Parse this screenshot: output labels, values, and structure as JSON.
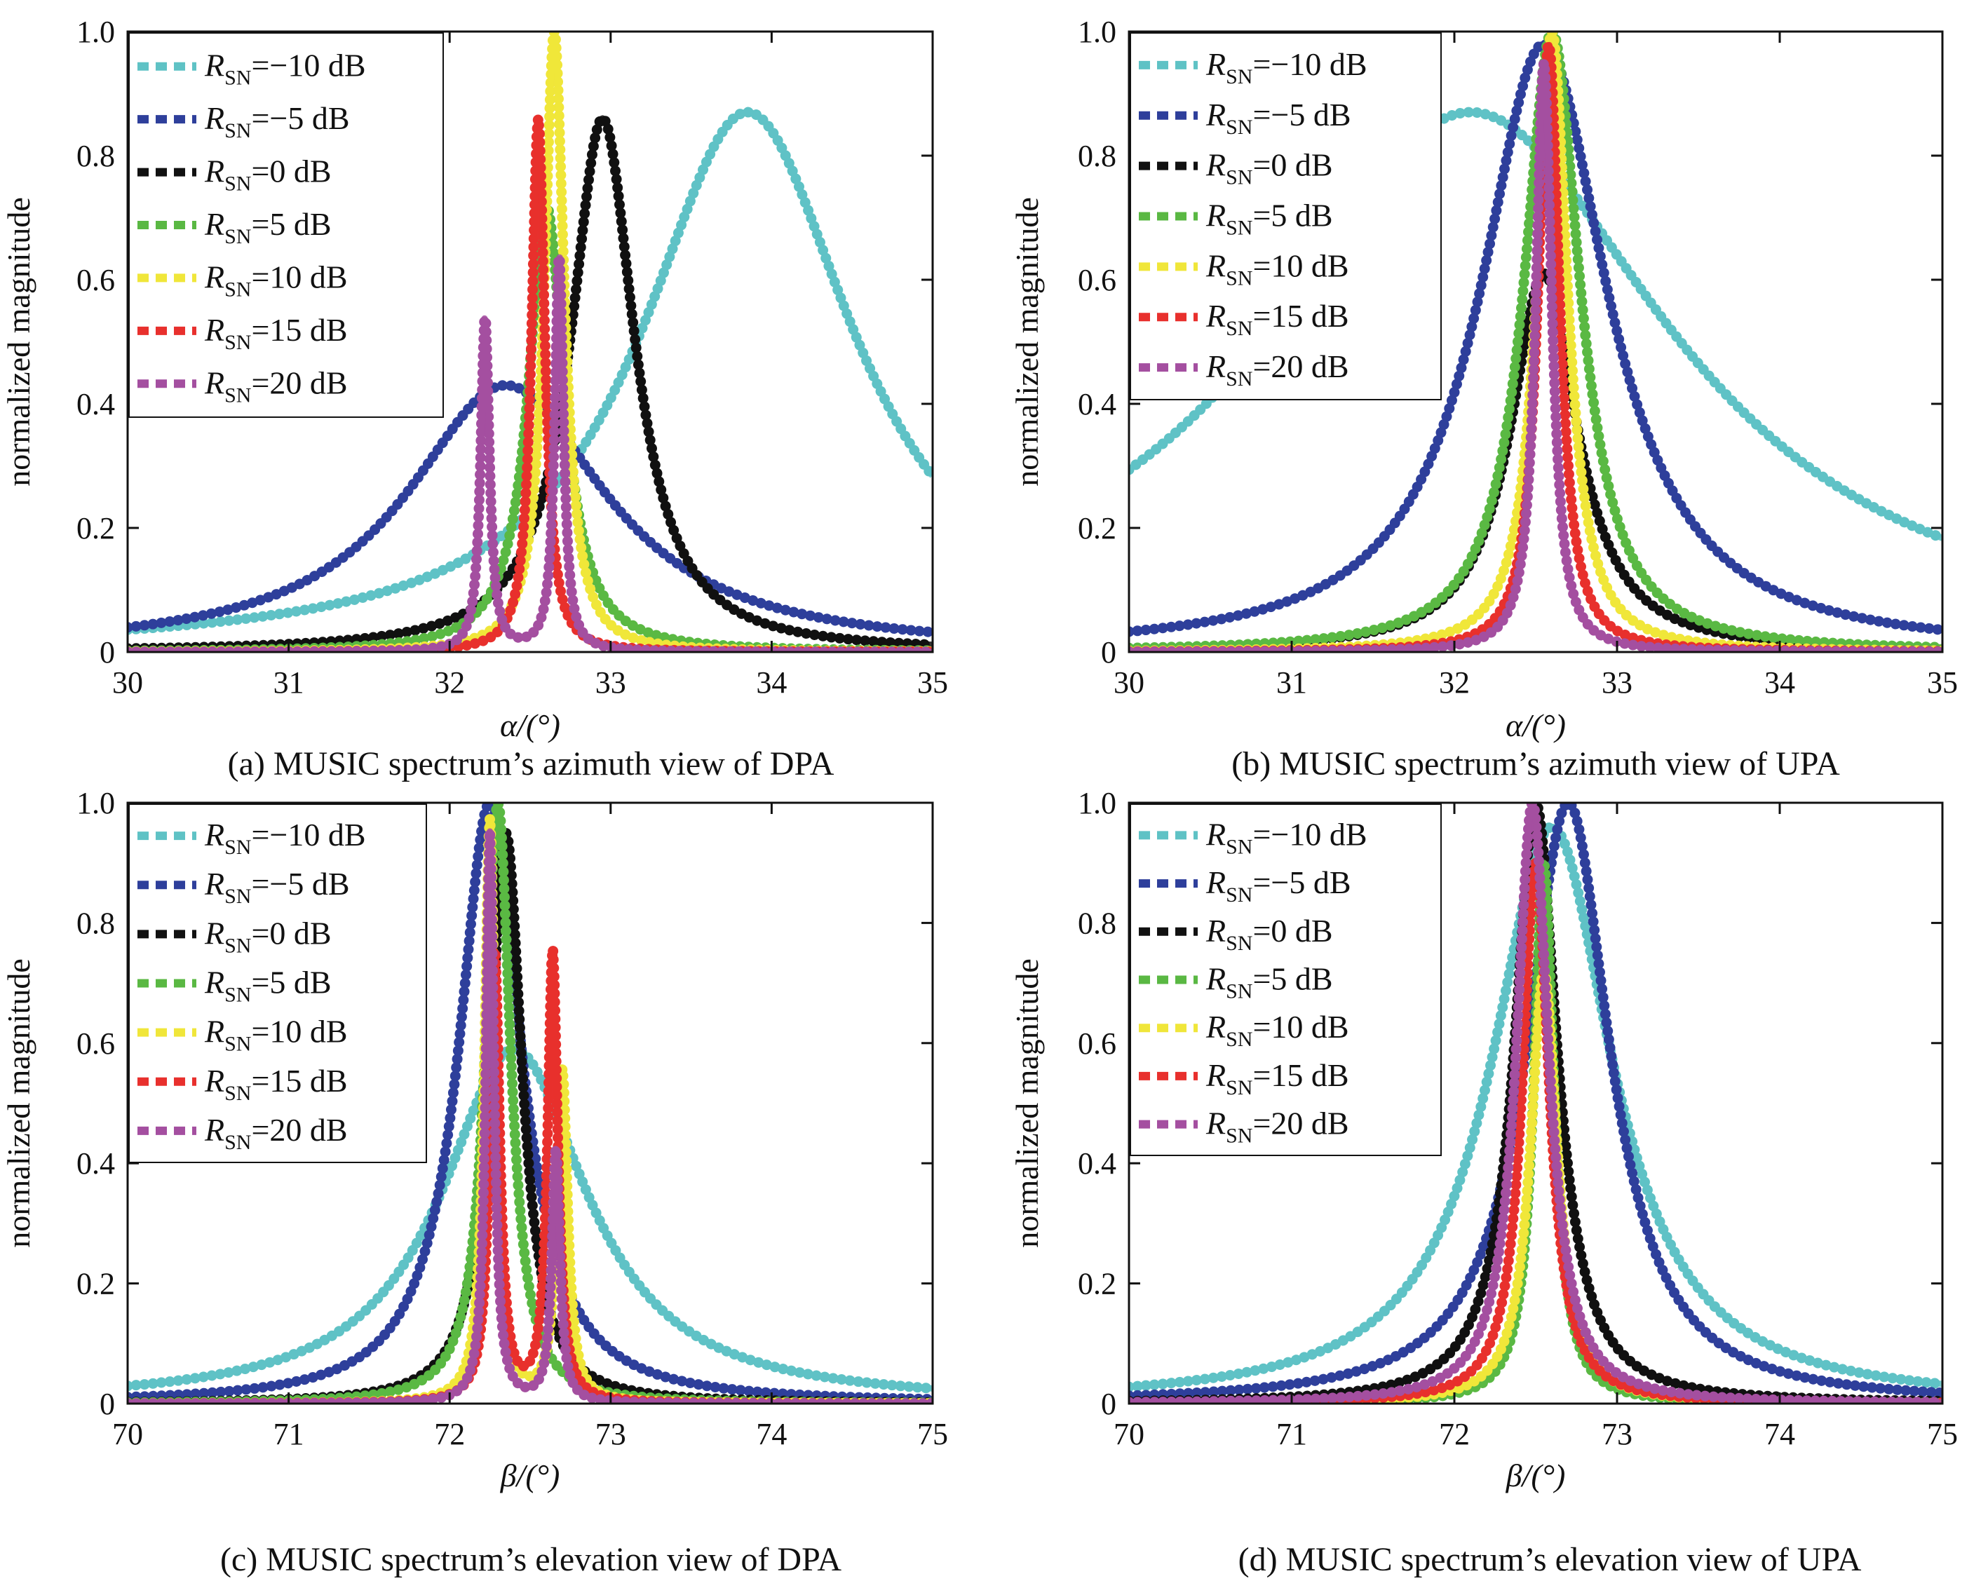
{
  "chart_data": [
    {
      "panel": "a",
      "type": "line",
      "caption": "(a) MUSIC spectrum’s azimuth view of DPA",
      "xlabel": "α/(°)",
      "ylabel": "normalized magnitude",
      "xlim": [
        30,
        35
      ],
      "ylim": [
        0,
        1
      ],
      "xticks": [
        "30",
        "31",
        "32",
        "33",
        "34",
        "35"
      ],
      "yticks": [
        "0",
        "0.2",
        "0.4",
        "0.6",
        "0.8",
        "1.0"
      ],
      "legend_position": "top-left",
      "series": [
        {
          "name": "R_SN=−10 dB",
          "legend_main": "=−10 dB",
          "color": "#5fc2c5",
          "peaks": [
            {
              "x": 33.85,
              "a": 0.87,
              "w": 1.6
            }
          ]
        },
        {
          "name": "R_SN=−5 dB",
          "legend_main": "=−5 dB",
          "color": "#2e3f9b",
          "peaks": [
            {
              "x": 32.35,
              "a": 0.43,
              "w": 1.5
            }
          ]
        },
        {
          "name": "R_SN=0 dB",
          "legend_main": "=0 dB",
          "color": "#111111",
          "peaks": [
            {
              "x": 32.95,
              "a": 0.86,
              "w": 0.48
            }
          ]
        },
        {
          "name": "R_SN=5 dB",
          "legend_main": "=5 dB",
          "color": "#5ab843",
          "peaks": [
            {
              "x": 32.6,
              "a": 0.72,
              "w": 0.27
            }
          ]
        },
        {
          "name": "R_SN=10 dB",
          "legend_main": "=10 dB",
          "color": "#f0e63a",
          "peaks": [
            {
              "x": 32.65,
              "a": 1.0,
              "w": 0.15
            }
          ]
        },
        {
          "name": "R_SN=15 dB",
          "legend_main": "=15 dB",
          "color": "#e8302d",
          "peaks": [
            {
              "x": 32.55,
              "a": 0.86,
              "w": 0.1
            }
          ]
        },
        {
          "name": "R_SN=20 dB",
          "legend_main": "=20 dB",
          "color": "#a44fa0",
          "peaks": [
            {
              "x": 32.22,
              "a": 0.54,
              "w": 0.065
            },
            {
              "x": 32.68,
              "a": 0.64,
              "w": 0.065
            }
          ]
        }
      ]
    },
    {
      "panel": "b",
      "type": "line",
      "caption": "(b) MUSIC spectrum’s azimuth view of UPA",
      "xlabel": "α/(°)",
      "ylabel": "normalized magnitude",
      "xlim": [
        30,
        35
      ],
      "ylim": [
        0,
        1
      ],
      "xticks": [
        "30",
        "31",
        "32",
        "33",
        "34",
        "35"
      ],
      "yticks": [
        "0",
        "0.2",
        "0.4",
        "0.6",
        "0.8",
        "1.0"
      ],
      "legend_position": "top-left",
      "series": [
        {
          "name": "R_SN=−10 dB",
          "legend_main": "=−10 dB",
          "color": "#5fc2c5",
          "peaks": [
            {
              "x": 32.1,
              "a": 0.87,
              "w": 3.0
            }
          ]
        },
        {
          "name": "R_SN=−5 dB",
          "legend_main": "=−5 dB",
          "color": "#2e3f9b",
          "peaks": [
            {
              "x": 32.55,
              "a": 0.98,
              "w": 0.95
            }
          ]
        },
        {
          "name": "R_SN=0 dB",
          "legend_main": "=0 dB",
          "color": "#111111",
          "peaks": [
            {
              "x": 32.55,
              "a": 0.61,
              "w": 0.5
            }
          ]
        },
        {
          "name": "R_SN=5 dB",
          "legend_main": "=5 dB",
          "color": "#5ab843",
          "peaks": [
            {
              "x": 32.6,
              "a": 1.0,
              "w": 0.42
            }
          ]
        },
        {
          "name": "R_SN=10 dB",
          "legend_main": "=10 dB",
          "color": "#f0e63a",
          "peaks": [
            {
              "x": 32.6,
              "a": 1.0,
              "w": 0.23
            }
          ]
        },
        {
          "name": "R_SN=15 dB",
          "legend_main": "=15 dB",
          "color": "#e8302d",
          "peaks": [
            {
              "x": 32.58,
              "a": 0.98,
              "w": 0.16
            }
          ]
        },
        {
          "name": "R_SN=20 dB",
          "legend_main": "=20 dB",
          "color": "#a44fa0",
          "peaks": [
            {
              "x": 32.55,
              "a": 0.95,
              "w": 0.12
            }
          ]
        }
      ]
    },
    {
      "panel": "c",
      "type": "line",
      "caption": "(c) MUSIC spectrum’s elevation view of DPA",
      "xlabel": "β/(°)",
      "ylabel": "normalized magnitude",
      "xlim": [
        70,
        75
      ],
      "ylim": [
        0,
        1
      ],
      "xticks": [
        "70",
        "71",
        "72",
        "73",
        "74",
        "75"
      ],
      "yticks": [
        "0",
        "0.2",
        "0.4",
        "0.6",
        "0.8",
        "1.0"
      ],
      "legend_position": "top-left",
      "series": [
        {
          "name": "R_SN=−10 dB",
          "legend_main": "=−10 dB",
          "color": "#5fc2c5",
          "peaks": [
            {
              "x": 72.4,
              "a": 0.59,
              "w": 1.1
            }
          ]
        },
        {
          "name": "R_SN=−5 dB",
          "legend_main": "=−5 dB",
          "color": "#2e3f9b",
          "peaks": [
            {
              "x": 72.25,
              "a": 1.0,
              "w": 0.47
            }
          ]
        },
        {
          "name": "R_SN=0 dB",
          "legend_main": "=0 dB",
          "color": "#111111",
          "peaks": [
            {
              "x": 72.35,
              "a": 0.95,
              "w": 0.24
            }
          ]
        },
        {
          "name": "R_SN=5 dB",
          "legend_main": "=5 dB",
          "color": "#5ab843",
          "peaks": [
            {
              "x": 72.3,
              "a": 1.0,
              "w": 0.19
            }
          ]
        },
        {
          "name": "R_SN=10 dB",
          "legend_main": "=10 dB",
          "color": "#f0e63a",
          "peaks": [
            {
              "x": 72.25,
              "a": 0.97,
              "w": 0.08
            },
            {
              "x": 72.7,
              "a": 0.55,
              "w": 0.08
            }
          ]
        },
        {
          "name": "R_SN=15 dB",
          "legend_main": "=15 dB",
          "color": "#e8302d",
          "peaks": [
            {
              "x": 72.28,
              "a": 0.75,
              "w": 0.075
            },
            {
              "x": 72.64,
              "a": 0.75,
              "w": 0.075
            }
          ]
        },
        {
          "name": "R_SN=20 dB",
          "legend_main": "=20 dB",
          "color": "#a44fa0",
          "peaks": [
            {
              "x": 72.25,
              "a": 0.95,
              "w": 0.06
            },
            {
              "x": 72.66,
              "a": 0.42,
              "w": 0.06
            }
          ]
        }
      ]
    },
    {
      "panel": "d",
      "type": "line",
      "caption": "(d) MUSIC spectrum’s elevation view of UPA",
      "xlabel": "β/(°)",
      "ylabel": "normalized magnitude",
      "xlim": [
        70,
        75
      ],
      "ylim": [
        0,
        1
      ],
      "xticks": [
        "70",
        "71",
        "72",
        "73",
        "74",
        "75"
      ],
      "yticks": [
        "0",
        "0.2",
        "0.4",
        "0.6",
        "0.8",
        "1.0"
      ],
      "legend_position": "top-left",
      "series": [
        {
          "name": "R_SN=−10 dB",
          "legend_main": "=−10 dB",
          "color": "#5fc2c5",
          "peaks": [
            {
              "x": 72.6,
              "a": 0.96,
              "w": 0.9
            }
          ]
        },
        {
          "name": "R_SN=−5 dB",
          "legend_main": "=−5 dB",
          "color": "#2e3f9b",
          "peaks": [
            {
              "x": 72.7,
              "a": 1.0,
              "w": 0.62
            }
          ]
        },
        {
          "name": "R_SN=0 dB",
          "legend_main": "=0 dB",
          "color": "#111111",
          "peaks": [
            {
              "x": 72.5,
              "a": 1.0,
              "w": 0.32
            }
          ]
        },
        {
          "name": "R_SN=5 dB",
          "legend_main": "=5 dB",
          "color": "#5ab843",
          "peaks": [
            {
              "x": 72.55,
              "a": 0.9,
              "w": 0.15
            }
          ]
        },
        {
          "name": "R_SN=10 dB",
          "legend_main": "=10 dB",
          "color": "#f0e63a",
          "peaks": [
            {
              "x": 72.55,
              "a": 0.72,
              "w": 0.2
            }
          ]
        },
        {
          "name": "R_SN=15 dB",
          "legend_main": "=15 dB",
          "color": "#e8302d",
          "peaks": [
            {
              "x": 72.5,
              "a": 0.9,
              "w": 0.2
            }
          ]
        },
        {
          "name": "R_SN=20 dB",
          "legend_main": "=20 dB",
          "color": "#a44fa0",
          "peaks": [
            {
              "x": 72.48,
              "a": 1.0,
              "w": 0.24
            }
          ]
        }
      ]
    }
  ],
  "legend_symbol": "R",
  "legend_subscript": "SN"
}
